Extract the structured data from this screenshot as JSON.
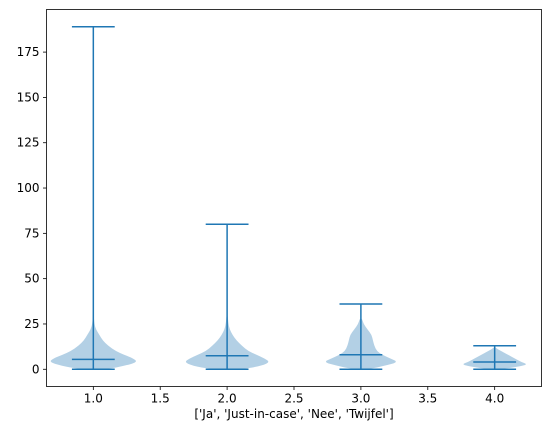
{
  "chart_data": {
    "type": "violin",
    "xlabel": "['Ja', 'Just-in-case', 'Nee', 'Twijfel']",
    "ylabel": "",
    "title": "",
    "xlim": [
      0.65,
      4.35
    ],
    "ylim": [
      -9.5,
      198.5
    ],
    "xticks": [
      1.0,
      1.5,
      2.0,
      2.5,
      3.0,
      3.5,
      4.0
    ],
    "xtick_labels": [
      "1.0",
      "1.5",
      "2.0",
      "2.5",
      "3.0",
      "3.5",
      "4.0"
    ],
    "yticks": [
      0,
      25,
      50,
      75,
      100,
      125,
      150,
      175
    ],
    "ytick_labels": [
      "0",
      "25",
      "50",
      "75",
      "100",
      "125",
      "150",
      "175"
    ],
    "grid": false,
    "colors": {
      "body": "#a6c8e0",
      "lines": "#1f77b4"
    },
    "violins": [
      {
        "position": 1.0,
        "min": 0,
        "max": 189,
        "median": 5.5,
        "profile": [
          [
            0,
            0.1
          ],
          [
            2,
            0.24
          ],
          [
            4,
            0.33
          ],
          [
            6,
            0.3
          ],
          [
            8,
            0.23
          ],
          [
            10,
            0.17
          ],
          [
            13,
            0.11
          ],
          [
            16,
            0.07
          ],
          [
            19,
            0.045
          ],
          [
            22,
            0.02
          ],
          [
            25,
            0.008
          ],
          [
            30,
            0.003
          ],
          [
            40,
            0.001
          ]
        ]
      },
      {
        "position": 2.0,
        "min": 0,
        "max": 80,
        "median": 7.5,
        "profile": [
          [
            0,
            0.12
          ],
          [
            2,
            0.26
          ],
          [
            4,
            0.32
          ],
          [
            6,
            0.28
          ],
          [
            8,
            0.22
          ],
          [
            10,
            0.16
          ],
          [
            13,
            0.11
          ],
          [
            16,
            0.07
          ],
          [
            19,
            0.04
          ],
          [
            22,
            0.02
          ],
          [
            25,
            0.01
          ],
          [
            30,
            0.004
          ]
        ]
      },
      {
        "position": 3.0,
        "min": 0,
        "max": 36,
        "median": 8,
        "profile": [
          [
            0,
            0.06
          ],
          [
            2,
            0.18
          ],
          [
            4,
            0.28
          ],
          [
            6,
            0.22
          ],
          [
            8,
            0.16
          ],
          [
            10,
            0.12
          ],
          [
            13,
            0.1
          ],
          [
            16,
            0.09
          ],
          [
            19,
            0.08
          ],
          [
            22,
            0.05
          ],
          [
            25,
            0.02
          ],
          [
            28,
            0.008
          ]
        ]
      },
      {
        "position": 4.0,
        "min": 0,
        "max": 13,
        "median": 4,
        "profile": [
          [
            0,
            0.05
          ],
          [
            2,
            0.22
          ],
          [
            3,
            0.24
          ],
          [
            4,
            0.2
          ],
          [
            6,
            0.15
          ],
          [
            8,
            0.1
          ],
          [
            10,
            0.05
          ],
          [
            11,
            0.025
          ],
          [
            12,
            0.008
          ]
        ]
      }
    ]
  }
}
